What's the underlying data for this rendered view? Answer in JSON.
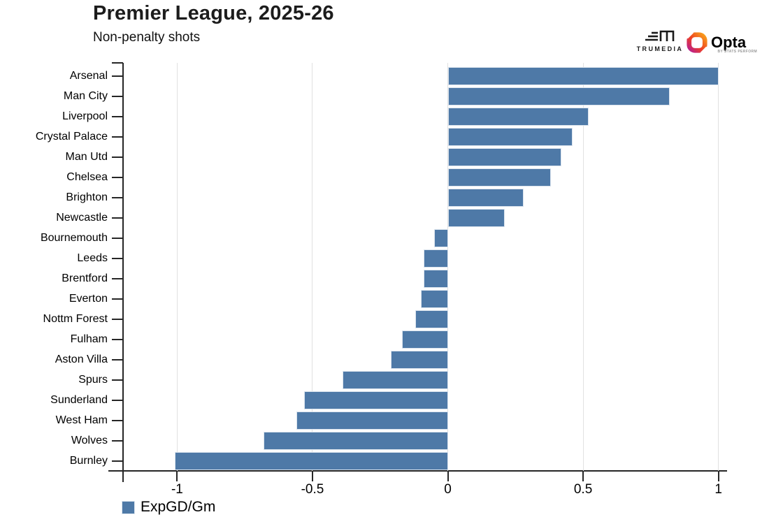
{
  "header": {
    "title": "Premier League, 2025-26",
    "subtitle": "Non-penalty shots",
    "trumedia_label": "TRUMEDIA",
    "opta_label": "Opta",
    "opta_sublabel": "BY STATS PERFORM"
  },
  "legend": {
    "label": "ExpGD/Gm",
    "color": "#4e79a7"
  },
  "chart_data": {
    "type": "bar",
    "orientation": "horizontal",
    "title": "Premier League, 2025-26",
    "subtitle": "Non-penalty shots",
    "categories": [
      "Arsenal",
      "Man City",
      "Liverpool",
      "Crystal Palace",
      "Man Utd",
      "Chelsea",
      "Brighton",
      "Newcastle",
      "Bournemouth",
      "Leeds",
      "Brentford",
      "Everton",
      "Nottm Forest",
      "Fulham",
      "Aston Villa",
      "Spurs",
      "Sunderland",
      "West Ham",
      "Wolves",
      "Burnley"
    ],
    "values": [
      1.0,
      0.82,
      0.52,
      0.46,
      0.42,
      0.38,
      0.28,
      0.21,
      -0.05,
      -0.09,
      -0.09,
      -0.1,
      -0.12,
      -0.17,
      -0.21,
      -0.39,
      -0.53,
      -0.56,
      -0.68,
      -1.01
    ],
    "series_name": "ExpGD/Gm",
    "xlim": [
      -1.2,
      1.032
    ],
    "xticks": [
      -1,
      -0.5,
      0,
      0.5,
      1
    ],
    "xtick_labels": [
      "-1",
      "-0.5",
      "0",
      "0.5",
      "1"
    ],
    "grid": true,
    "legend_position": "bottom-left",
    "bar_color": "#4e79a7",
    "bar_edge_color": "#dbe4ee",
    "grid_color": "#e1e1e1",
    "axis_color": "#262626"
  }
}
